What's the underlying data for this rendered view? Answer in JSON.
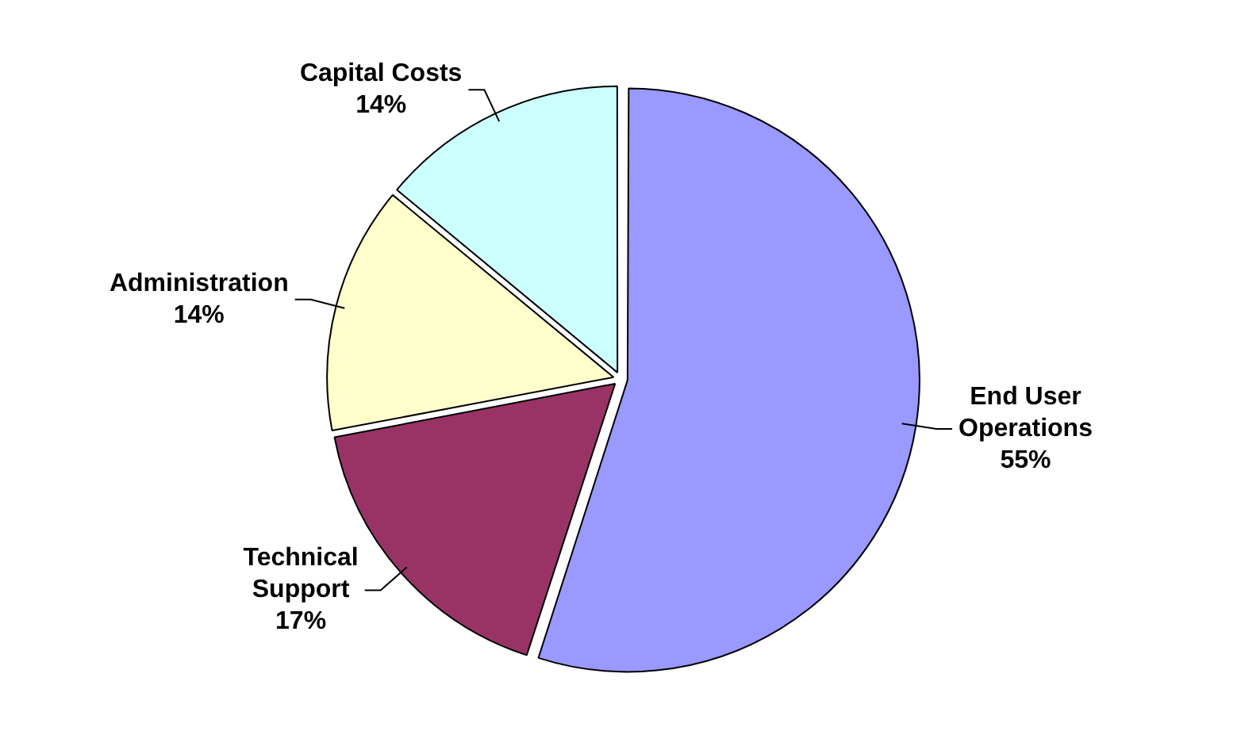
{
  "chart_data": {
    "type": "pie",
    "categories": [
      "End User Operations",
      "Technical Support",
      "Administration",
      "Capital Costs"
    ],
    "values": [
      55,
      17,
      14,
      14
    ],
    "colors": [
      "#9999ff",
      "#993366",
      "#ffffcc",
      "#ccffff"
    ],
    "value_labels": [
      "55%",
      "17%",
      "14%",
      "14%"
    ],
    "legend": false
  }
}
